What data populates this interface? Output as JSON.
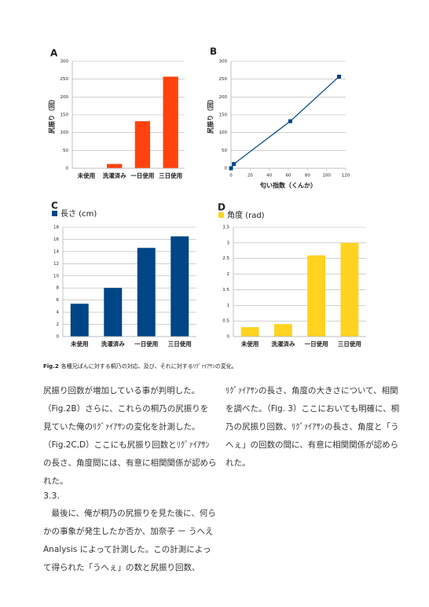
{
  "chart_data": [
    {
      "type": "bar",
      "panel": "A",
      "y_label": "尻振り（回）",
      "categories": [
        "未使用",
        "洗濯済み",
        "一日使用",
        "三日使用"
      ],
      "values": [
        0,
        12,
        132,
        257
      ],
      "color": "#ff420e",
      "ylim": [
        0,
        300
      ],
      "yticks": [
        0,
        50,
        100,
        150,
        200,
        250,
        300
      ],
      "grid": true
    },
    {
      "type": "line",
      "panel": "B",
      "y_label": "尻振り（回）",
      "x_label": "匂い指数（くんか）",
      "x": [
        0,
        3,
        62,
        113
      ],
      "values": [
        0,
        12,
        132,
        257
      ],
      "color": "#004586",
      "xlim": [
        0,
        120
      ],
      "xticks": [
        0,
        20,
        40,
        60,
        80,
        100,
        120
      ],
      "ylim": [
        0,
        300
      ],
      "yticks": [
        0,
        50,
        100,
        150,
        200,
        250,
        300
      ],
      "grid": true
    },
    {
      "type": "bar",
      "panel": "C",
      "categories": [
        "未使用",
        "洗濯済み",
        "一日使用",
        "三日使用"
      ],
      "series": [
        {
          "name": "長さ (cm)",
          "color": "#004586",
          "values": [
            5.4,
            8,
            14.6,
            16.5
          ]
        }
      ],
      "ylim": [
        0,
        18
      ],
      "yticks": [
        0,
        2,
        4,
        6,
        8,
        10,
        12,
        14,
        16,
        18
      ],
      "grid": true
    },
    {
      "type": "bar",
      "panel": "D",
      "categories": [
        "未使用",
        "洗濯済み",
        "一日使用",
        "三日使用"
      ],
      "series": [
        {
          "name": "角度 (rad)",
          "color": "#ffd320",
          "values": [
            0.3,
            0.4,
            2.6,
            3.0
          ]
        }
      ],
      "ylim": [
        0,
        3.5
      ],
      "yticks": [
        0,
        0.5,
        1,
        1.5,
        2,
        2.5,
        3,
        3.5
      ],
      "grid": true
    }
  ],
  "caption": {
    "label": "Fig.2",
    "text": "各種兄ぱんに対する桐乃の対応、及び、それに対するﾘｸﾞｧｲｱｻﾝの変化。"
  },
  "left_column": [
    "尻振り回数が増加している事が判明した。",
    "（Fig.2B）さらに、これらの桐乃の尻振りを",
    "見ていた俺のﾘｸﾞｧｲｱｻﾝの変化を計測した。",
    "（Fig.2C,D）ここにも尻振り回数とﾘｸﾞｧｲｱｻﾝ",
    "の長さ、角度間には、有意に相関関係が認めら",
    "れた。"
  ],
  "section": {
    "heading": "3.3.",
    "lines": [
      "　最後に、俺が桐乃の尻振りを見た後に、何ら",
      "かの事象が発生したか否か、加奈子 ー うへえ",
      "Analysis によって計測した。この計測によっ",
      "て得られた「うへぇ」の数と尻振り回数、"
    ]
  },
  "right_column": [
    "ﾘｸﾞｧｲｱｻﾝの長さ、角度の大きさについて、相関",
    "を調べた。（Fig. 3）ここにおいても明確に、桐",
    "乃の尻振り回数、ﾘｸﾞｧｲｱｻﾝの長さ、角度と「う",
    "へぇ」の回数の間に、有意に相関関係が認めら",
    "れた。"
  ]
}
